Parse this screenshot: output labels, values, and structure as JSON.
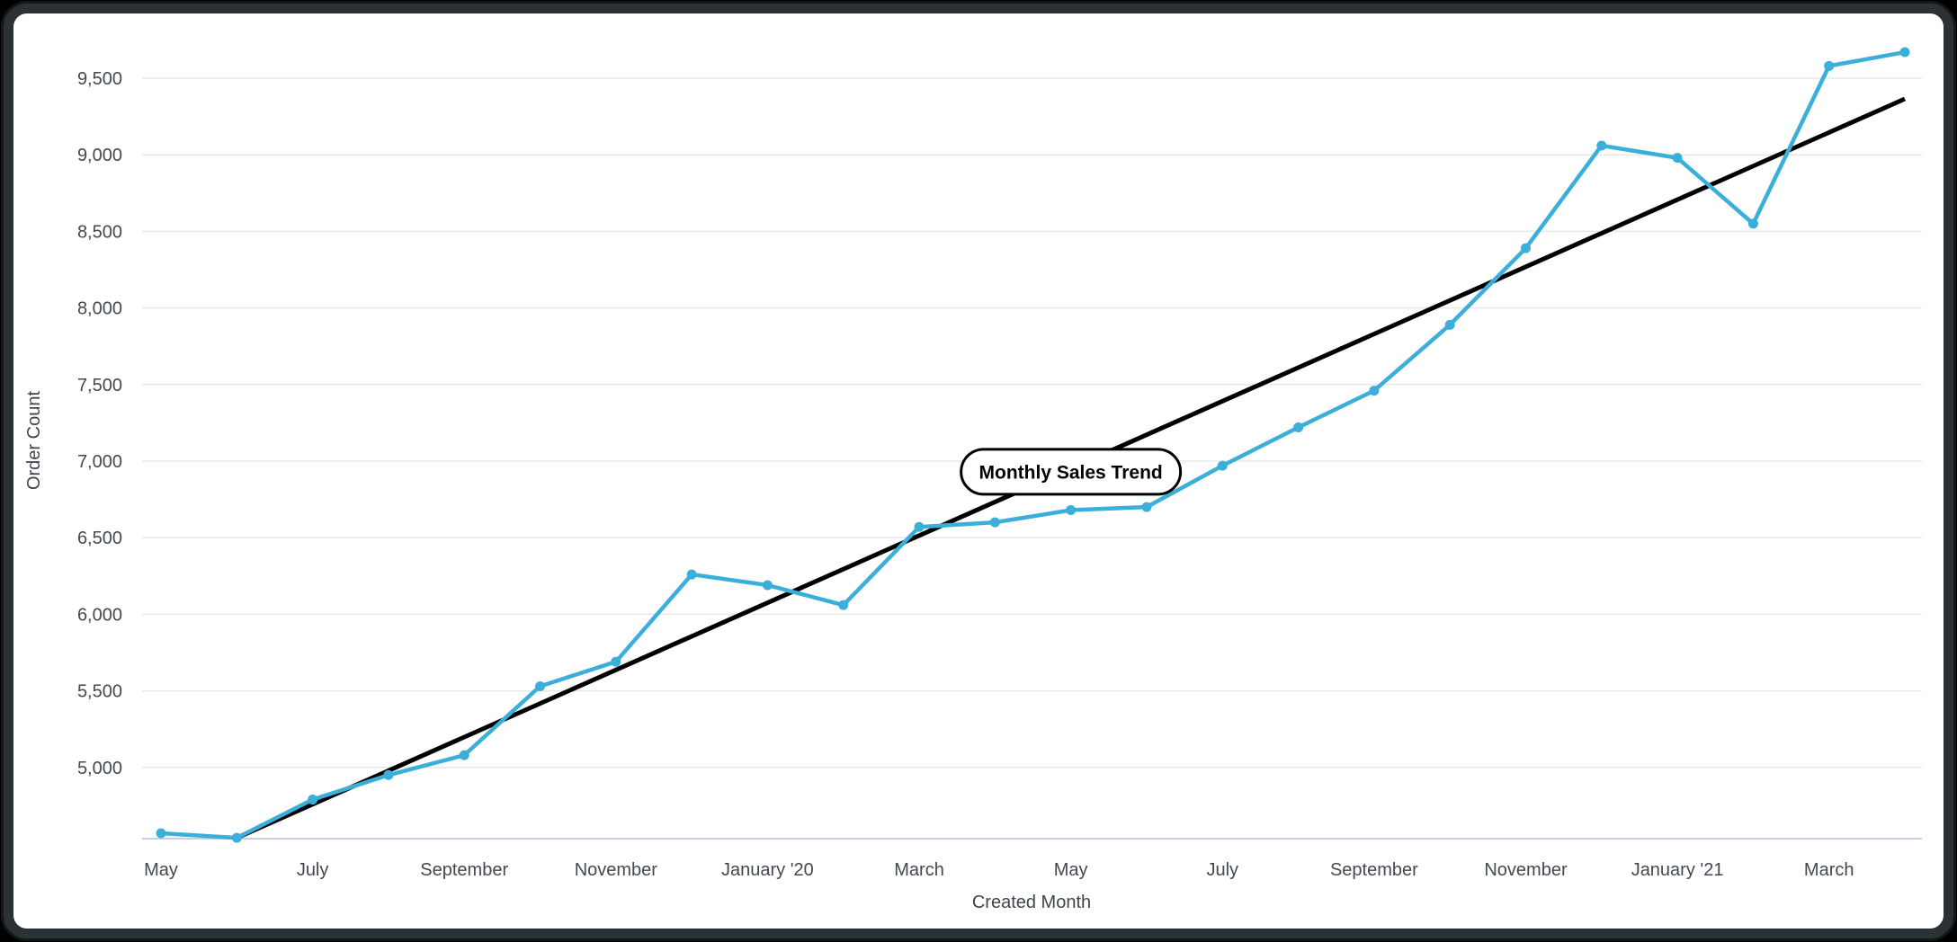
{
  "chart_data": {
    "type": "line",
    "title": "",
    "xlabel": "Created Month",
    "ylabel": "Order Count",
    "grid": "horizontal",
    "legend": "none",
    "x_months": [
      "May '19",
      "June '19",
      "July '19",
      "August '19",
      "September '19",
      "October '19",
      "November '19",
      "December '19",
      "January '20",
      "February '20",
      "March '20",
      "April '20",
      "May '20",
      "June '20",
      "July '20",
      "August '20",
      "September '20",
      "October '20",
      "November '20",
      "December '20",
      "January '21",
      "February '21",
      "March '21",
      "April '21"
    ],
    "x_tick_labels": [
      "May",
      "July",
      "September",
      "November",
      "January '20",
      "March",
      "May",
      "July",
      "September",
      "November",
      "January '21",
      "March"
    ],
    "x_tick_every": 2,
    "y_ticks": [
      {
        "value": 5000,
        "label": "5,000"
      },
      {
        "value": 5500,
        "label": "5,500"
      },
      {
        "value": 6000,
        "label": "6,000"
      },
      {
        "value": 6500,
        "label": "6,500"
      },
      {
        "value": 7000,
        "label": "7,000"
      },
      {
        "value": 7500,
        "label": "7,500"
      },
      {
        "value": 8000,
        "label": "8,000"
      },
      {
        "value": 8500,
        "label": "8,500"
      },
      {
        "value": 9000,
        "label": "9,000"
      },
      {
        "value": 9500,
        "label": "9,500"
      }
    ],
    "ylim": [
      4535,
      9830
    ],
    "series": [
      {
        "name": "Order Count",
        "style": "line+markers",
        "color": "#3BAFD9",
        "values": [
          4570,
          4540,
          4790,
          4950,
          5080,
          5530,
          5690,
          6260,
          6190,
          6060,
          6570,
          6600,
          6680,
          6700,
          6970,
          7220,
          7460,
          7890,
          8390,
          9060,
          8980,
          8550,
          9580,
          9670
        ]
      },
      {
        "name": "Trend",
        "style": "line",
        "color": "#000000",
        "x_indices": [
          1,
          23
        ],
        "values": [
          4540,
          9365
        ]
      }
    ],
    "annotation": {
      "label": "Monthly Sales Trend",
      "x_index": 12,
      "value": 6930
    },
    "colors": {
      "series_blue": "#3BAFD9",
      "trend_black": "#000000",
      "gridline": "#e8e8e8",
      "axis_line": "#c9d0e6",
      "tick_text": "#424950",
      "frame": "#2b3236",
      "card_background": "#ffffff",
      "page_background": "#000000"
    }
  }
}
